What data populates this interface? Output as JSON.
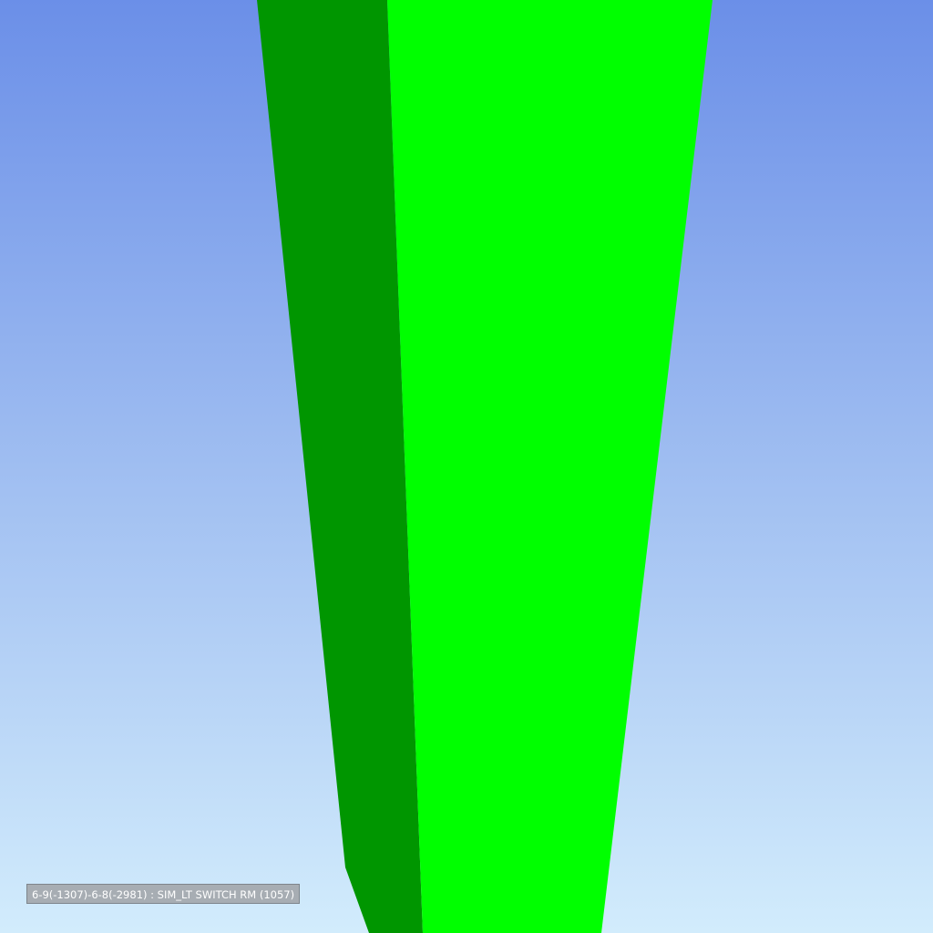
{
  "scene": {
    "background_top_color": "#6b8fe8",
    "background_bottom_color": "#d2ecfc",
    "column_side_face_color": "#009600",
    "column_front_face_color": "#00ff00"
  },
  "element_label": {
    "text": "6-9(-1307)-6-8(-2981) : SIM_LT SWITCH RM (1057)"
  }
}
